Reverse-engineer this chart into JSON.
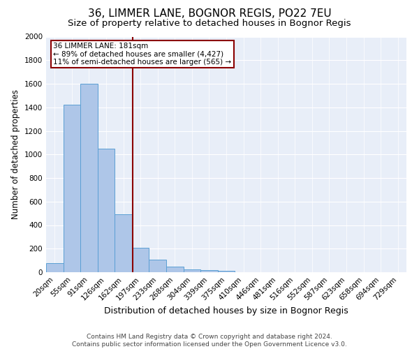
{
  "title1": "36, LIMMER LANE, BOGNOR REGIS, PO22 7EU",
  "title2": "Size of property relative to detached houses in Bognor Regis",
  "xlabel": "Distribution of detached houses by size in Bognor Regis",
  "ylabel": "Number of detached properties",
  "bar_labels": [
    "20sqm",
    "55sqm",
    "91sqm",
    "126sqm",
    "162sqm",
    "197sqm",
    "233sqm",
    "268sqm",
    "304sqm",
    "339sqm",
    "375sqm",
    "410sqm",
    "446sqm",
    "481sqm",
    "516sqm",
    "552sqm",
    "587sqm",
    "623sqm",
    "658sqm",
    "694sqm",
    "729sqm"
  ],
  "bar_values": [
    80,
    1420,
    1600,
    1050,
    490,
    210,
    105,
    45,
    25,
    15,
    10,
    0,
    0,
    0,
    0,
    0,
    0,
    0,
    0,
    0,
    0
  ],
  "bar_color": "#aec6e8",
  "bar_edge_color": "#5a9fd4",
  "vline_color": "#8b0000",
  "annotation_text": "36 LIMMER LANE: 181sqm\n← 89% of detached houses are smaller (4,427)\n11% of semi-detached houses are larger (565) →",
  "annotation_box_color": "white",
  "annotation_box_edge": "#8b0000",
  "ylim": [
    0,
    2000
  ],
  "yticks": [
    0,
    200,
    400,
    600,
    800,
    1000,
    1200,
    1400,
    1600,
    1800,
    2000
  ],
  "background_color": "#e8eef8",
  "grid_color": "white",
  "footer": "Contains HM Land Registry data © Crown copyright and database right 2024.\nContains public sector information licensed under the Open Government Licence v3.0.",
  "title1_fontsize": 11,
  "title2_fontsize": 9.5,
  "xlabel_fontsize": 9,
  "ylabel_fontsize": 8.5,
  "tick_fontsize": 7.5,
  "footer_fontsize": 6.5
}
